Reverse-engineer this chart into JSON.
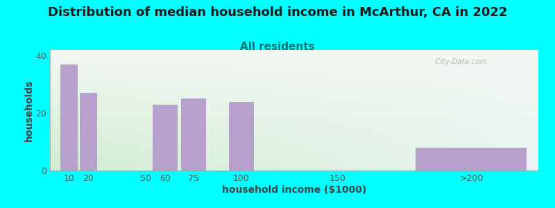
{
  "title": "Distribution of median household income in McArthur, CA in 2022",
  "subtitle": "All residents",
  "xlabel": "household income ($1000)",
  "ylabel": "households",
  "bar_positions": [
    10,
    20,
    60,
    75,
    100,
    220
  ],
  "bar_heights": [
    37,
    27,
    23,
    25,
    24,
    8
  ],
  "bar_widths": [
    9,
    9,
    13,
    13,
    13,
    58
  ],
  "bar_color": "#b8a0cc",
  "bar_edgecolor": "none",
  "xtick_positions": [
    10,
    20,
    50,
    60,
    75,
    100,
    150,
    220
  ],
  "xtick_labels": [
    "10",
    "20",
    "50",
    "60",
    "75",
    "100",
    "150",
    ">200"
  ],
  "ytick_positions": [
    0,
    20,
    40
  ],
  "ytick_labels": [
    "0",
    "20",
    "40"
  ],
  "ylim": [
    0,
    42
  ],
  "xlim": [
    0,
    255
  ],
  "outer_bg": "#00ffff",
  "title_fontsize": 13,
  "subtitle_fontsize": 11,
  "axis_label_fontsize": 10,
  "tick_label_fontsize": 9,
  "watermark_text": "  City-Data.com",
  "title_color": "#1a1a1a",
  "subtitle_color": "#007777",
  "axis_label_color": "#444444",
  "tick_color": "#555555"
}
